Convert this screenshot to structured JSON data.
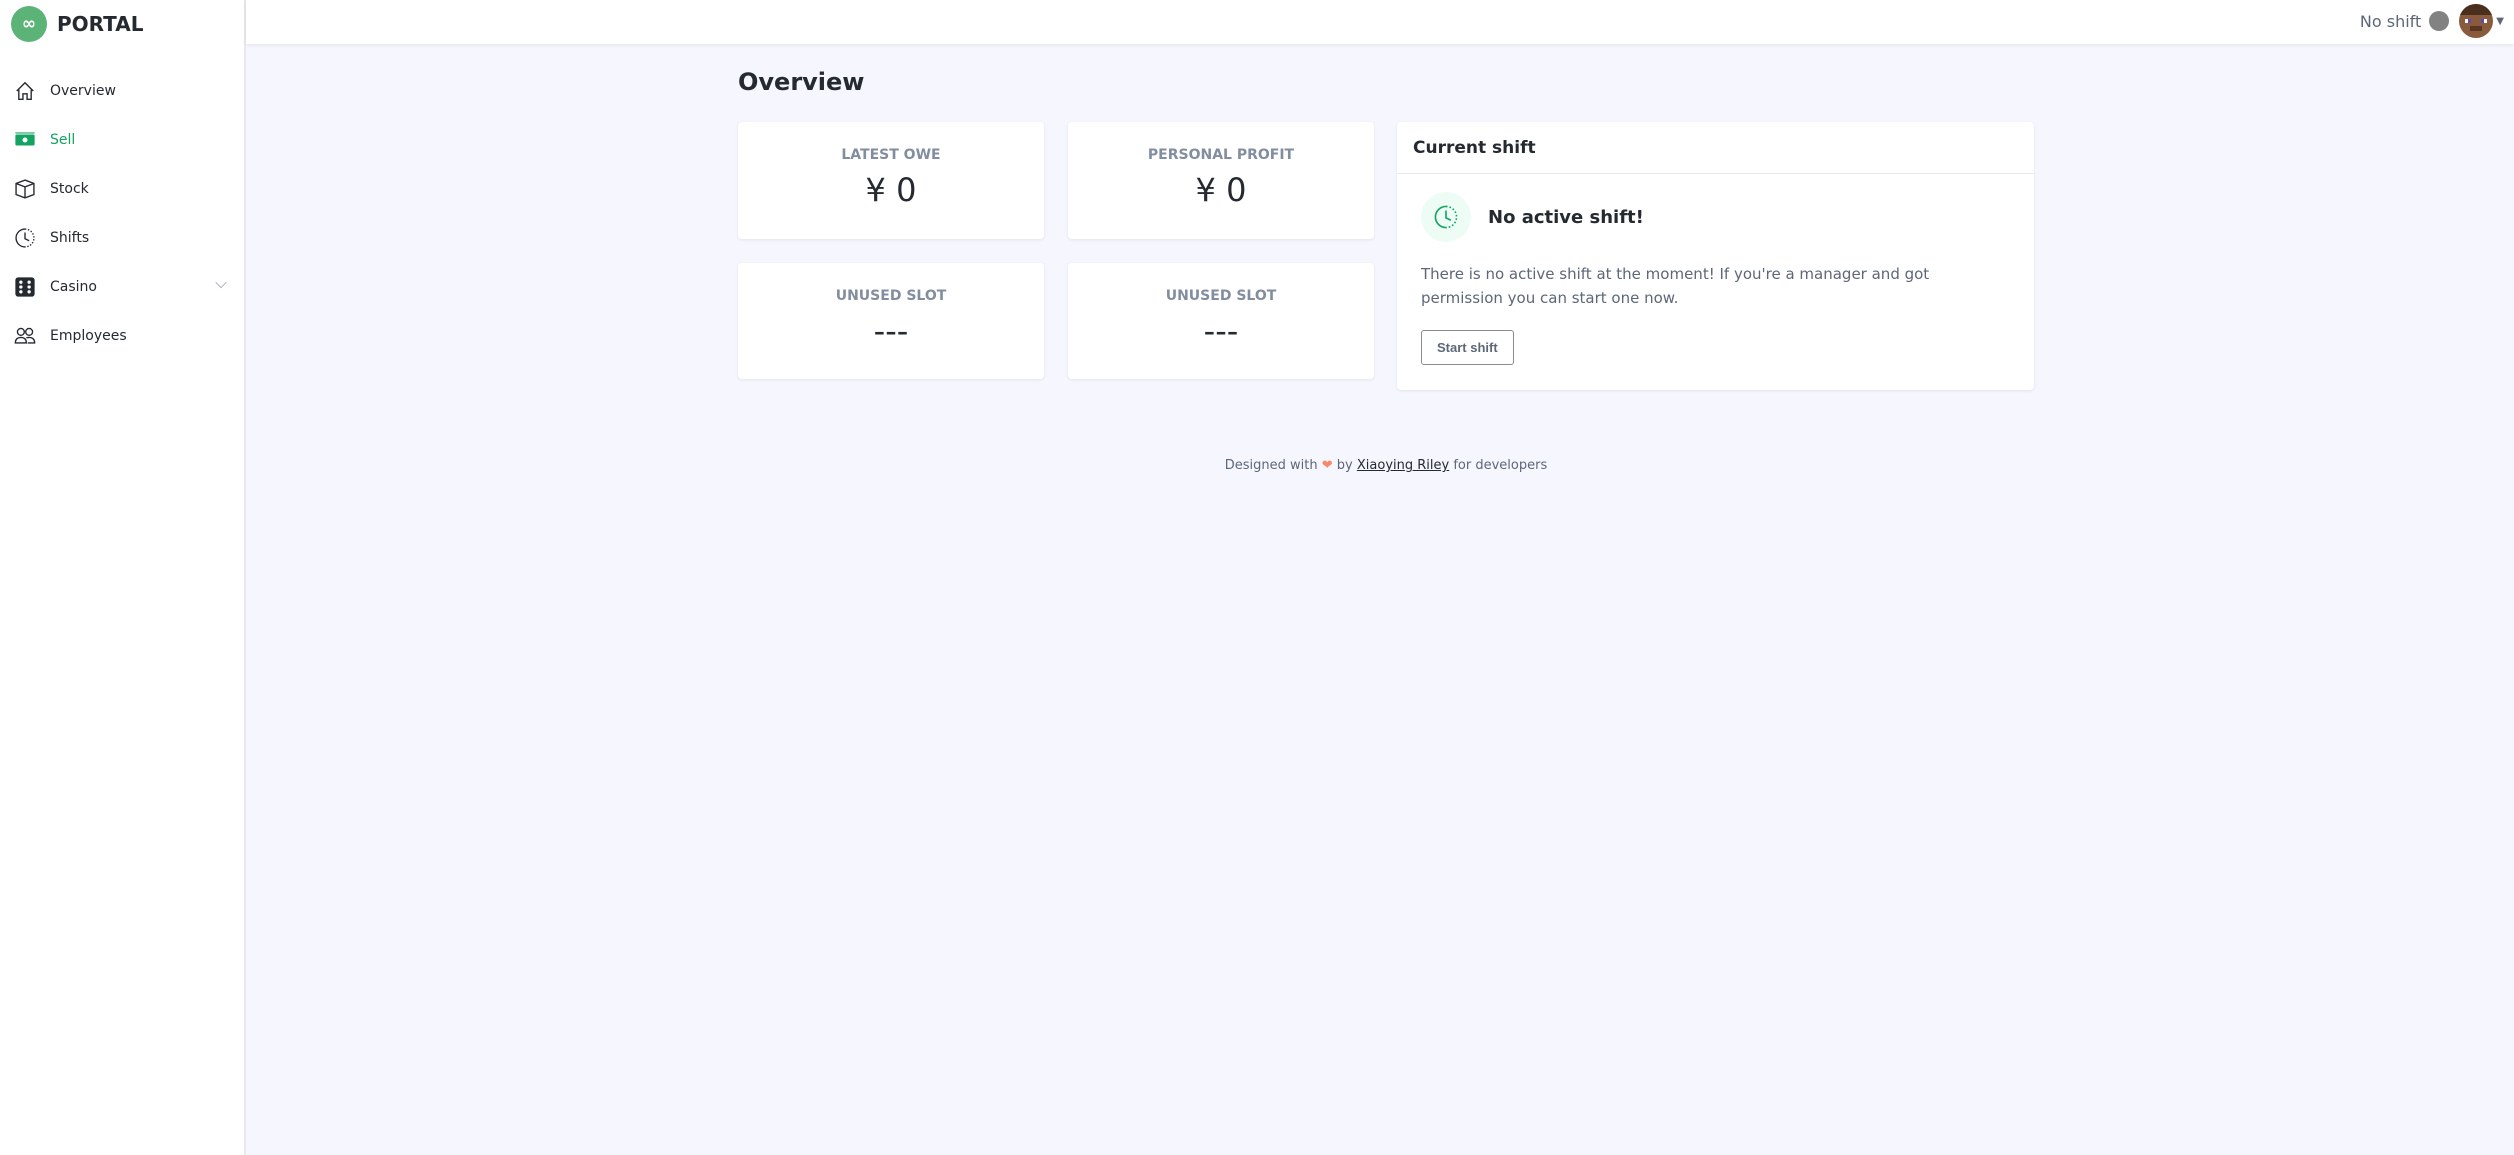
{
  "brand": {
    "name": "PORTAL",
    "logo_glyph": "∞"
  },
  "sidebar": {
    "items": [
      {
        "label": "Overview",
        "icon": "home-icon"
      },
      {
        "label": "Sell",
        "icon": "cash-icon",
        "active": true
      },
      {
        "label": "Stock",
        "icon": "box-icon"
      },
      {
        "label": "Shifts",
        "icon": "clock-icon"
      },
      {
        "label": "Casino",
        "icon": "dice-icon",
        "has_submenu": true
      },
      {
        "label": "Employees",
        "icon": "people-icon"
      }
    ]
  },
  "header": {
    "shift_status": "No shift",
    "status_color": "#828282"
  },
  "page": {
    "title": "Overview"
  },
  "stats": [
    {
      "label": "LATEST OWE",
      "value": "¥ 0"
    },
    {
      "label": "PERSONAL PROFIT",
      "value": "¥ 0"
    },
    {
      "label": "UNUSED SLOT",
      "value": "---"
    },
    {
      "label": "UNUSED SLOT",
      "value": "---"
    }
  ],
  "shift_card": {
    "title": "Current shift",
    "heading": "No active shift!",
    "description": "There is no active shift at the moment! If you're a manager and got permission you can start one now.",
    "button": "Start shift"
  },
  "footer": {
    "prefix": "Designed with",
    "heart": "❤",
    "by": "by",
    "author": "Xiaoying Riley",
    "suffix": "for developers"
  },
  "colors": {
    "accent": "#15a362",
    "logo": "#5cb377",
    "background": "#f5f6fe"
  }
}
